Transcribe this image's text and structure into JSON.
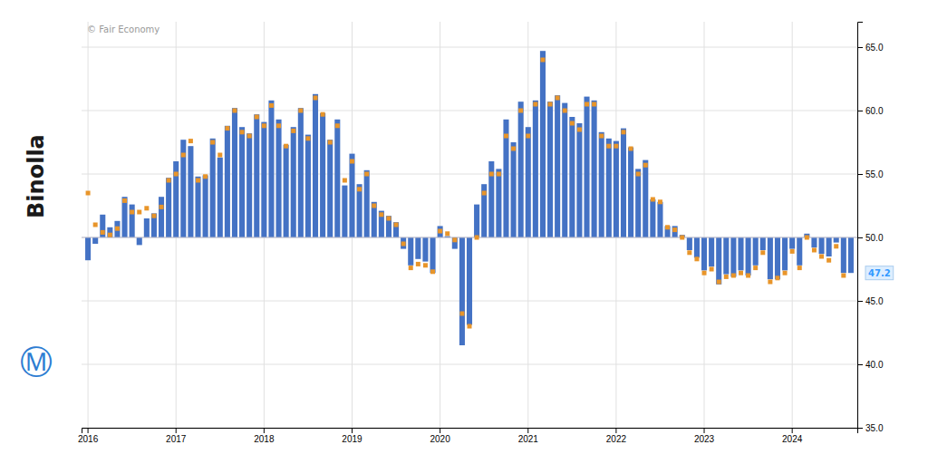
{
  "chart_data": {
    "type": "bar",
    "categories": [
      "2016",
      null,
      null,
      null,
      null,
      null,
      null,
      null,
      null,
      null,
      null,
      null,
      "2017",
      null,
      null,
      null,
      null,
      null,
      null,
      null,
      null,
      null,
      null,
      null,
      "2018",
      null,
      null,
      null,
      null,
      null,
      null,
      null,
      null,
      null,
      null,
      null,
      "2019",
      null,
      null,
      null,
      null,
      null,
      null,
      null,
      null,
      null,
      null,
      null,
      "2020",
      null,
      null,
      null,
      null,
      null,
      null,
      null,
      null,
      null,
      null,
      null,
      "2021",
      null,
      null,
      null,
      null,
      null,
      null,
      null,
      null,
      null,
      null,
      null,
      "2022",
      null,
      null,
      null,
      null,
      null,
      null,
      null,
      null,
      null,
      null,
      null,
      "2023",
      null,
      null,
      null,
      null,
      null,
      null,
      null,
      null,
      null,
      null,
      null,
      "2024",
      null,
      null,
      null,
      null,
      null,
      null,
      null,
      null
    ],
    "series": [
      {
        "type": "bar",
        "color": "#4472c4",
        "baseline": 50.0,
        "values": [
          48.2,
          49.5,
          51.8,
          50.8,
          51.3,
          53.2,
          52.6,
          49.4,
          51.5,
          51.9,
          53.2,
          54.7,
          56.0,
          57.7,
          57.2,
          54.8,
          54.9,
          57.8,
          56.3,
          58.8,
          60.2,
          58.7,
          58.2,
          59.7,
          59.1,
          60.8,
          59.3,
          57.3,
          58.7,
          60.2,
          58.1,
          61.3,
          59.8,
          57.7,
          59.3,
          54.1,
          56.6,
          54.2,
          55.3,
          52.8,
          52.1,
          51.7,
          51.2,
          49.1,
          47.8,
          48.3,
          48.1,
          47.2,
          50.9,
          50.1,
          49.1,
          41.5,
          43.1,
          52.6,
          54.2,
          56.0,
          55.4,
          59.3,
          57.5,
          60.7,
          58.7,
          60.8,
          64.7,
          60.7,
          61.2,
          60.6,
          59.5,
          59.0,
          61.1,
          60.8,
          58.3,
          57.8,
          57.6,
          58.6,
          57.1,
          55.4,
          56.1,
          53.0,
          52.8,
          50.9,
          50.9,
          50.2,
          49.0,
          48.4,
          47.4,
          47.7,
          46.3,
          47.1,
          46.9,
          47.4,
          47.0,
          47.8,
          49.0,
          46.7,
          46.7,
          47.4,
          49.1,
          47.8,
          50.3,
          49.2,
          48.7,
          48.5,
          49.6,
          47.2,
          47.2
        ]
      },
      {
        "type": "scatter",
        "marker": "square",
        "color": "#e8952a",
        "values": [
          53.5,
          51.0,
          50.4,
          50.2,
          50.7,
          52.9,
          52.0,
          52.0,
          52.3,
          51.7,
          52.4,
          54.5,
          55.0,
          56.5,
          57.6,
          54.5,
          54.8,
          57.5,
          56.5,
          58.6,
          60.0,
          58.3,
          58.0,
          59.5,
          58.8,
          60.4,
          58.8,
          57.2,
          58.4,
          60.0,
          57.8,
          61.0,
          59.7,
          57.5,
          58.8,
          54.5,
          56.0,
          53.8,
          55.0,
          52.5,
          51.8,
          51.5,
          51.0,
          49.5,
          47.6,
          47.9,
          47.8,
          47.3,
          50.5,
          50.3,
          49.8,
          44.0,
          43.0,
          50.0,
          53.5,
          55.0,
          55.0,
          58.0,
          57.0,
          60.0,
          58.0,
          60.5,
          64.0,
          60.5,
          61.0,
          60.0,
          59.0,
          58.5,
          60.5,
          60.5,
          58.0,
          57.2,
          57.2,
          58.3,
          57.0,
          55.0,
          55.7,
          53.0,
          52.8,
          50.8,
          50.6,
          50.0,
          48.8,
          48.3,
          47.2,
          47.5,
          46.5,
          46.9,
          47.0,
          47.2,
          47.0,
          47.6,
          48.8,
          46.5,
          46.8,
          47.2,
          48.9,
          47.6,
          50.0,
          49.0,
          48.5,
          48.2,
          49.3,
          47.0,
          null
        ]
      }
    ],
    "ylim": [
      35.0,
      67.0
    ],
    "yticks": [
      {
        "value": 35.0,
        "label": "35.0"
      },
      {
        "value": 40.0,
        "label": "40.0"
      },
      {
        "value": 45.0,
        "label": "45.0"
      },
      {
        "value": 50.0,
        "label": "50.0"
      },
      {
        "value": 55.0,
        "label": "55.0"
      },
      {
        "value": 60.0,
        "label": "60.0"
      },
      {
        "value": 65.0,
        "label": "65.0"
      }
    ],
    "grid": true,
    "annotations": [
      {
        "text": "© Fair Economy"
      },
      {
        "text": "47.2",
        "y": 47.2,
        "color": "#3399ff"
      },
      {
        "text": "Binolla",
        "color": "#1a1a1a"
      },
      {
        "text": "Ⓜ",
        "color": "#2d7dd2"
      }
    ]
  }
}
